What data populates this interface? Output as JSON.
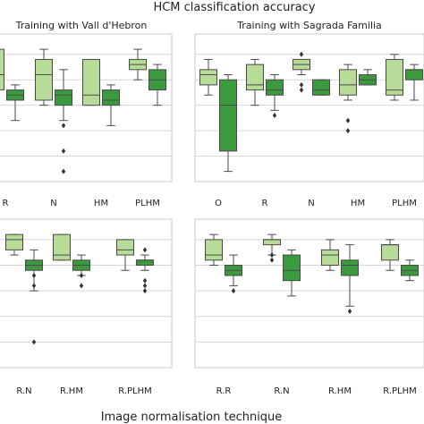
{
  "figure": {
    "title": "HCM classification accuracy",
    "xlabel": "Image normalisation technique"
  },
  "colors": {
    "light": "#b7dc98",
    "dark": "#3c9a3e",
    "box_edge": "#4a4a4a",
    "grid": "#d6d6d6",
    "frame": "#c8c8c8"
  },
  "chart_data": [
    {
      "type": "box",
      "title": "Training with Vall d'Hebron",
      "categories": [
        "R",
        "N",
        "HM",
        "PLHM"
      ],
      "series": [
        {
          "stats": [
            {
              "whislo": 0.8,
              "q1": 0.83,
              "med": 0.86,
              "q3": 0.91,
              "whishi": 0.92,
              "fliers": []
            },
            {
              "whislo": 0.8,
              "q1": 0.81,
              "med": 0.86,
              "q3": 0.89,
              "whishi": 0.91,
              "fliers": []
            },
            {
              "whislo": 0.8,
              "q1": 0.8,
              "med": 0.82,
              "q3": 0.89,
              "whishi": 0.89,
              "fliers": []
            },
            {
              "whislo": 0.85,
              "q1": 0.87,
              "med": 0.88,
              "q3": 0.89,
              "whishi": 0.91,
              "fliers": []
            }
          ]
        },
        {
          "stats": [
            {
              "whislo": 0.77,
              "q1": 0.81,
              "med": 0.82,
              "q3": 0.83,
              "whishi": 0.84,
              "fliers": []
            },
            {
              "whislo": 0.77,
              "q1": 0.8,
              "med": 0.82,
              "q3": 0.83,
              "whishi": 0.87,
              "fliers": [
                0.76,
                0.71,
                0.67
              ]
            },
            {
              "whislo": 0.76,
              "q1": 0.8,
              "med": 0.81,
              "q3": 0.83,
              "whishi": 0.84,
              "fliers": []
            },
            {
              "whislo": 0.8,
              "q1": 0.83,
              "med": 0.85,
              "q3": 0.87,
              "whishi": 0.88,
              "fliers": []
            }
          ]
        }
      ]
    },
    {
      "type": "box",
      "title": "Training with Sagrada Familia",
      "categories": [
        "O",
        "R",
        "N",
        "HM",
        "PLHM"
      ],
      "series": [
        {
          "stats": [
            {
              "whislo": 0.82,
              "q1": 0.84,
              "med": 0.86,
              "q3": 0.87,
              "whishi": 0.89,
              "fliers": []
            },
            {
              "whislo": 0.8,
              "q1": 0.83,
              "med": 0.84,
              "q3": 0.88,
              "whishi": 0.89,
              "fliers": []
            },
            {
              "whislo": 0.86,
              "q1": 0.87,
              "med": 0.88,
              "q3": 0.89,
              "whishi": 0.89,
              "fliers": [
                0.9,
                0.84,
                0.83
              ]
            },
            {
              "whislo": 0.81,
              "q1": 0.82,
              "med": 0.84,
              "q3": 0.87,
              "whishi": 0.88,
              "fliers": [
                0.77,
                0.75
              ]
            },
            {
              "whislo": 0.81,
              "q1": 0.82,
              "med": 0.83,
              "q3": 0.89,
              "whishi": 0.9,
              "fliers": []
            }
          ]
        },
        {
          "stats": [
            {
              "whislo": 0.67,
              "q1": 0.71,
              "med": 0.8,
              "q3": 0.85,
              "whishi": 0.86,
              "fliers": []
            },
            {
              "whislo": 0.79,
              "q1": 0.82,
              "med": 0.83,
              "q3": 0.85,
              "whishi": 0.86,
              "fliers": [
                0.78
              ]
            },
            {
              "whislo": 0.82,
              "q1": 0.82,
              "med": 0.83,
              "q3": 0.85,
              "whishi": 0.85,
              "fliers": []
            },
            {
              "whislo": 0.84,
              "q1": 0.84,
              "med": 0.85,
              "q3": 0.86,
              "whishi": 0.87,
              "fliers": []
            },
            {
              "whislo": 0.81,
              "q1": 0.85,
              "med": 0.87,
              "q3": 0.87,
              "whishi": 0.88,
              "fliers": []
            }
          ]
        }
      ]
    },
    {
      "type": "box",
      "title": "",
      "categories": [
        "R.N",
        "R.HM",
        "R.PLHM"
      ],
      "series": [
        {
          "stats": [
            {
              "whislo": 0.87,
              "q1": 0.88,
              "med": 0.9,
              "q3": 0.91,
              "whishi": 0.91,
              "fliers": []
            },
            {
              "whislo": 0.86,
              "q1": 0.86,
              "med": 0.87,
              "q3": 0.91,
              "whishi": 0.91,
              "fliers": []
            },
            {
              "whislo": 0.84,
              "q1": 0.87,
              "med": 0.88,
              "q3": 0.9,
              "whishi": 0.9,
              "fliers": []
            }
          ]
        },
        {
          "stats": [
            {
              "whislo": 0.8,
              "q1": 0.84,
              "med": 0.85,
              "q3": 0.86,
              "whishi": 0.88,
              "fliers": [
                0.83,
                0.81,
                0.7
              ]
            },
            {
              "whislo": 0.83,
              "q1": 0.84,
              "med": 0.85,
              "q3": 0.86,
              "whishi": 0.87,
              "fliers": [
                0.83,
                0.81
              ]
            },
            {
              "whislo": 0.84,
              "q1": 0.85,
              "med": 0.86,
              "q3": 0.86,
              "whishi": 0.87,
              "fliers": [
                0.88,
                0.82,
                0.81,
                0.8
              ]
            }
          ]
        }
      ]
    },
    {
      "type": "box",
      "title": "",
      "categories": [
        "R.R",
        "R.N",
        "R.HM",
        "R.PLHM"
      ],
      "series": [
        {
          "stats": [
            {
              "whislo": 0.85,
              "q1": 0.86,
              "med": 0.87,
              "q3": 0.9,
              "whishi": 0.91,
              "fliers": []
            },
            {
              "whislo": 0.87,
              "q1": 0.89,
              "med": 0.9,
              "q3": 0.9,
              "whishi": 0.91,
              "fliers": [
                0.86,
                0.87
              ]
            },
            {
              "whislo": 0.84,
              "q1": 0.85,
              "med": 0.87,
              "q3": 0.88,
              "whishi": 0.9,
              "fliers": []
            },
            {
              "whislo": 0.84,
              "q1": 0.86,
              "med": 0.89,
              "q3": 0.89,
              "whishi": 0.9,
              "fliers": []
            }
          ]
        },
        {
          "stats": [
            {
              "whislo": 0.81,
              "q1": 0.83,
              "med": 0.84,
              "q3": 0.85,
              "whishi": 0.87,
              "fliers": [
                0.8
              ]
            },
            {
              "whislo": 0.79,
              "q1": 0.82,
              "med": 0.84,
              "q3": 0.87,
              "whishi": 0.88,
              "fliers": []
            },
            {
              "whislo": 0.77,
              "q1": 0.83,
              "med": 0.85,
              "q3": 0.86,
              "whishi": 0.89,
              "fliers": [
                0.76
              ]
            },
            {
              "whislo": 0.82,
              "q1": 0.83,
              "med": 0.84,
              "q3": 0.85,
              "whishi": 0.86,
              "fliers": []
            }
          ]
        }
      ]
    }
  ]
}
